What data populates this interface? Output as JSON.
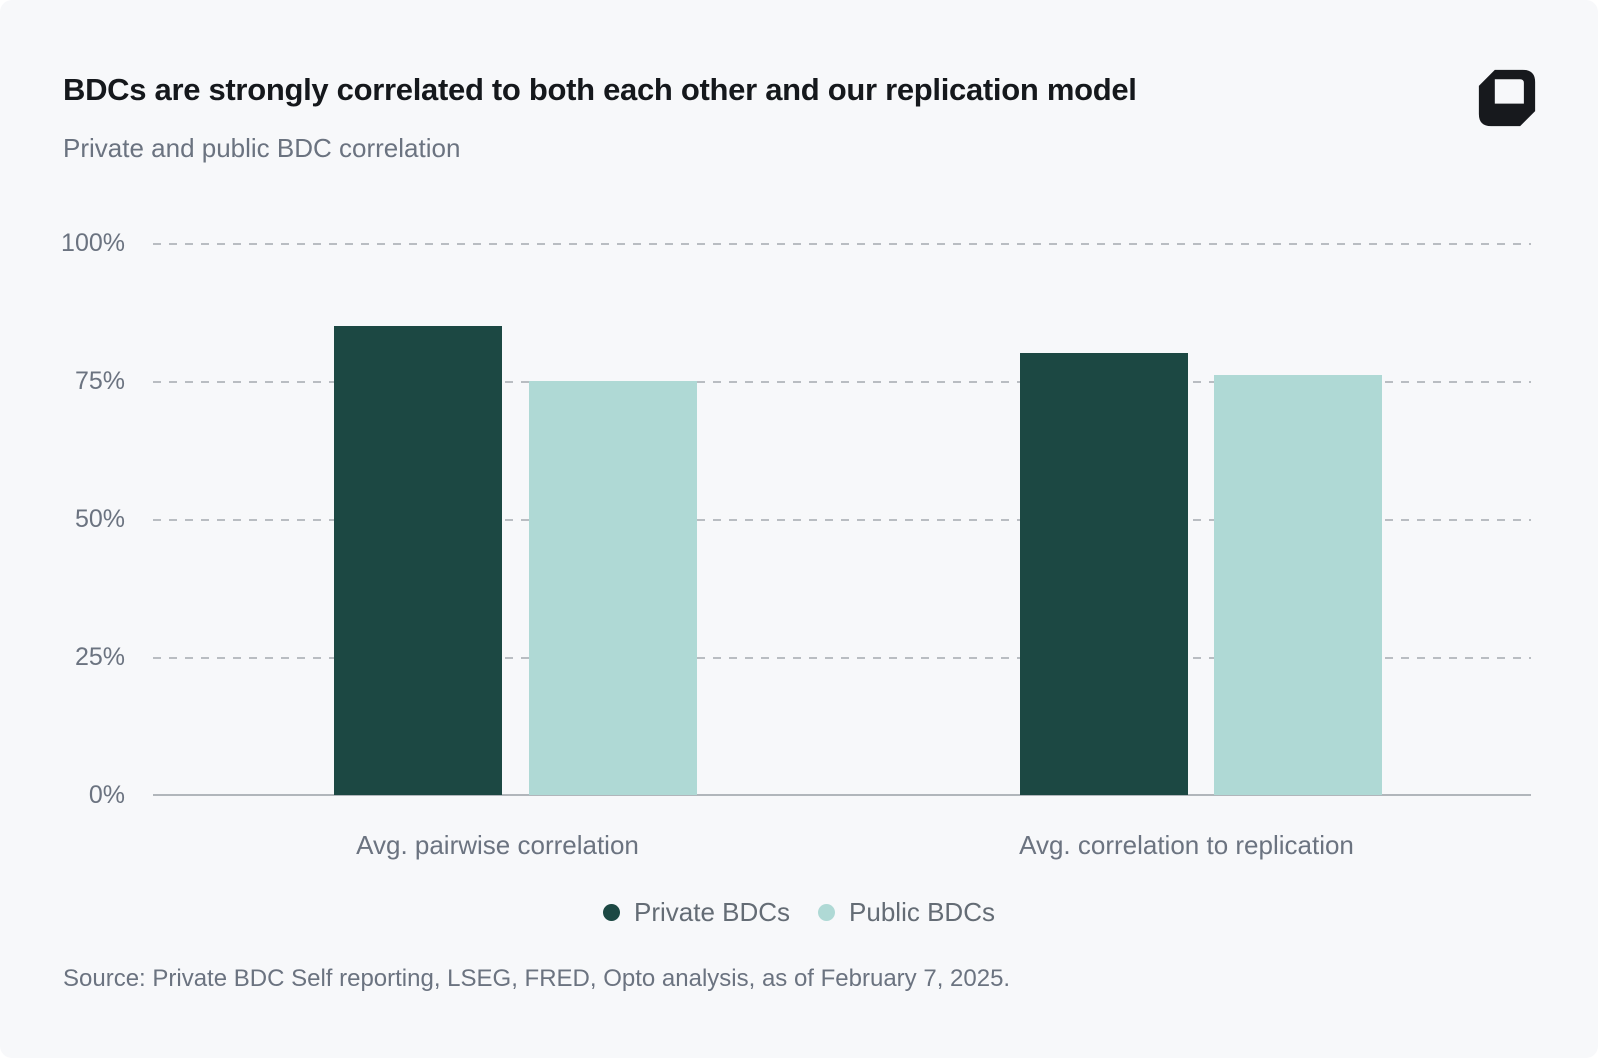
{
  "header": {
    "title": "BDCs are strongly correlated to both each other and our replication model",
    "subtitle": "Private and public BDC correlation"
  },
  "icons": {
    "logo": "opto-logo-mark"
  },
  "chart_data": {
    "type": "bar",
    "title": "BDCs are strongly correlated to both each other and our replication model",
    "subtitle": "Private and public BDC correlation",
    "categories": [
      "Avg. pairwise correlation",
      "Avg. correlation to replication"
    ],
    "series": [
      {
        "name": "Private BDCs",
        "color": "#1c4843",
        "values": [
          85,
          80
        ]
      },
      {
        "name": "Public BDCs",
        "color": "#afd9d5",
        "values": [
          75,
          76
        ]
      }
    ],
    "xlabel": "",
    "ylabel": "",
    "ylim": [
      0,
      100
    ],
    "ytick_values": [
      100,
      75,
      50,
      25,
      0
    ],
    "yticks": [
      "100%",
      "75%",
      "50%",
      "25%",
      "0%"
    ],
    "grid": "horizontal-dashed",
    "legend_position": "bottom"
  },
  "footer": {
    "source": "Source: Private BDC Self reporting, LSEG, FRED, Opto analysis, as of February 7, 2025."
  },
  "colors": {
    "bg": "#f7f8fa",
    "grid": "#b9bdc2",
    "axis": "#b1b6bb",
    "title-text": "#15181c",
    "muted-text": "#6b7380",
    "legend-text": "#646c75",
    "private": "#1c4843",
    "public": "#afd9d5",
    "logo": "#17191d"
  }
}
